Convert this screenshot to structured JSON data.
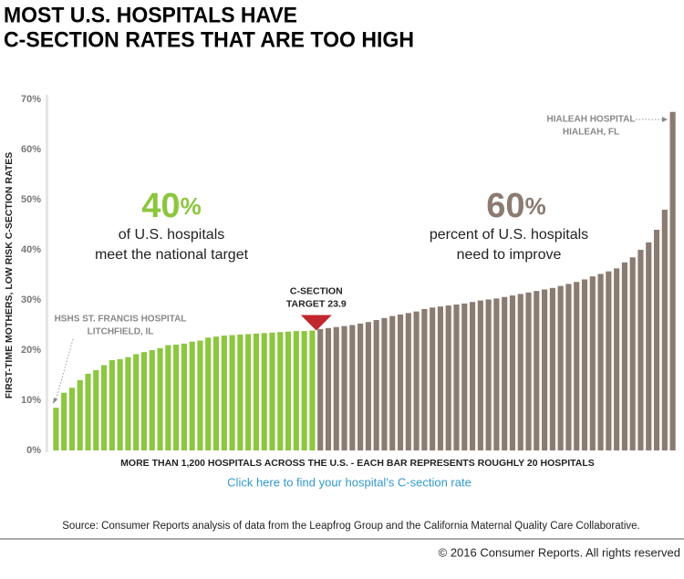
{
  "chart_data": {
    "type": "bar",
    "title_lines": [
      "MOST U.S. HOSPITALS HAVE",
      "C-SECTION RATES THAT ARE TOO HIGH"
    ],
    "y_label": "FIRST-TIME MOTHERS, LOW RISK C-SECTION RATES",
    "x_label": "MORE THAN 1,200 HOSPITALS ACROSS THE U.S. - EACH BAR REPRESENTS ROUGHLY 20 HOSPITALS",
    "link": "Click here to find your hospital's C-section rate",
    "source": "Source: Consumer Reports analysis of data from the Leapfrog Group and the California Maternal Quality Care Collaborative.",
    "copyright": "© 2016 Consumer Reports. All rights reserved",
    "ylim": [
      0,
      70
    ],
    "yticks": [
      {
        "value": 0,
        "label": "0%"
      },
      {
        "value": 10,
        "label": "10%"
      },
      {
        "value": 20,
        "label": "20%"
      },
      {
        "value": 30,
        "label": "30%"
      },
      {
        "value": 40,
        "label": "40%"
      },
      {
        "value": 50,
        "label": "50%"
      },
      {
        "value": 60,
        "label": "60%"
      },
      {
        "value": 70,
        "label": "70%"
      }
    ],
    "target": 23.9,
    "colors": {
      "meet": "#8dc63f",
      "improve": "#8b7b71",
      "marker": "#c1272d",
      "link": "#3399cc"
    },
    "values": [
      8.5,
      11.5,
      12.5,
      14.0,
      15.3,
      16.0,
      17.0,
      18.0,
      18.2,
      18.6,
      19.2,
      19.6,
      20.0,
      20.4,
      21.0,
      21.1,
      21.3,
      21.7,
      21.9,
      22.5,
      22.7,
      22.9,
      23.0,
      23.1,
      23.2,
      23.3,
      23.4,
      23.5,
      23.6,
      23.7,
      23.8,
      23.8,
      23.9,
      24.2,
      24.4,
      24.6,
      24.8,
      25.0,
      25.3,
      25.6,
      26.0,
      26.4,
      26.8,
      27.1,
      27.4,
      27.7,
      28.2,
      28.5,
      28.7,
      28.9,
      29.1,
      29.3,
      29.6,
      29.9,
      30.1,
      30.3,
      30.6,
      30.9,
      31.2,
      31.5,
      31.8,
      32.1,
      32.4,
      32.8,
      33.2,
      33.6,
      34.1,
      34.7,
      35.2,
      35.7,
      36.3,
      37.5,
      38.5,
      40.0,
      41.5,
      44.0,
      48.0,
      67.5
    ],
    "annotations": {
      "meet_pct": "40",
      "meet_sign": "%",
      "meet_line1": "of U.S. hospitals",
      "meet_line2": "meet the national target",
      "improve_pct": "60",
      "improve_sign": "%",
      "improve_line1": "percent of U.S. hospitals",
      "improve_line2": "need to improve",
      "low_name": "HSHS ST. FRANCIS HOSPITAL",
      "low_city": "LITCHFIELD, IL",
      "high_name": "HIALEAH HOSPITAL",
      "high_city": "HIALEAH, FL",
      "target_line1": "C-SECTION",
      "target_line2": "TARGET 23.9"
    }
  }
}
